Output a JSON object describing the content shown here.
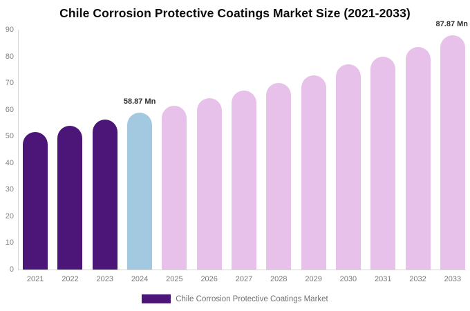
{
  "chart_data": {
    "type": "bar",
    "title": "Chile Corrosion Protective Coatings Market Size (2021-2033)",
    "unit": "Mn",
    "categories": [
      "2021",
      "2022",
      "2023",
      "2024",
      "2025",
      "2026",
      "2027",
      "2028",
      "2029",
      "2030",
      "2031",
      "2032",
      "2033"
    ],
    "series": [
      {
        "name": "Chile Corrosion Protective Coatings Market",
        "values": [
          51.5,
          53.9,
          56.4,
          58.87,
          61.5,
          64.2,
          67.1,
          70.0,
          73.0,
          77.0,
          80.0,
          83.5,
          87.87
        ]
      }
    ],
    "bar_roles": [
      "historical",
      "historical",
      "historical",
      "base",
      "forecast",
      "forecast",
      "forecast",
      "forecast",
      "forecast",
      "forecast",
      "forecast",
      "forecast",
      "forecast"
    ],
    "colors": {
      "historical": "#4b1678",
      "base": "#a2c9df",
      "forecast": "#e7c1e9",
      "axis_line": "#d7d7d7"
    },
    "data_labels": [
      {
        "index": 3,
        "text": "58.87 Mn"
      },
      {
        "index": 12,
        "text": "87.87 Mn"
      }
    ],
    "y_ticks": [
      0,
      10,
      20,
      30,
      40,
      50,
      60,
      70,
      80,
      90
    ],
    "ylim": [
      0,
      90
    ],
    "xlabel": "",
    "ylabel": "",
    "grid": false,
    "legend": {
      "position": "bottom",
      "label": "Chile Corrosion Protective Coatings Market",
      "swatch_color": "#4b1678"
    }
  }
}
